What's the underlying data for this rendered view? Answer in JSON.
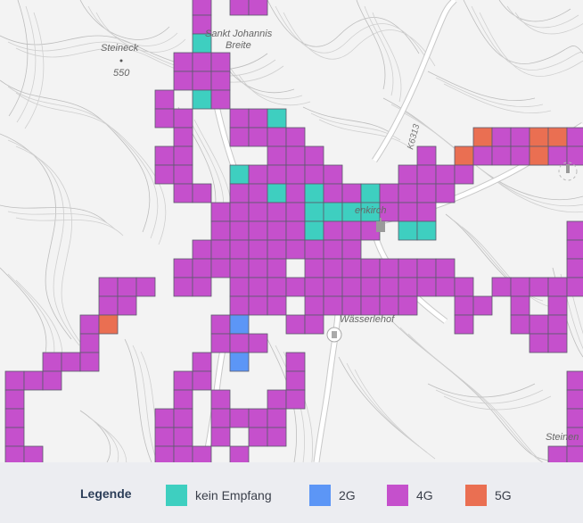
{
  "map": {
    "places": [
      {
        "name": "Steineck",
        "key": "steineck"
      },
      {
        "name": "550",
        "key": "elev"
      },
      {
        "name": "Sankt Johannis",
        "key": "sj1"
      },
      {
        "name": "Breite",
        "key": "sj2"
      },
      {
        "name": "Wässerlehof",
        "key": "wasserlehof"
      },
      {
        "name": "enkirch",
        "key": "village"
      },
      {
        "name": "K6313",
        "key": "k6313"
      },
      {
        "name": "Steinen",
        "key": "steinen"
      }
    ]
  },
  "legend": {
    "title": "Legende",
    "items": [
      {
        "label": "kein Empfang",
        "color": "#3ecfc0"
      },
      {
        "label": "2G",
        "color": "#5c96f6"
      },
      {
        "label": "4G",
        "color": "#c550cc"
      },
      {
        "label": "5G",
        "color": "#ea6f52"
      }
    ]
  }
}
